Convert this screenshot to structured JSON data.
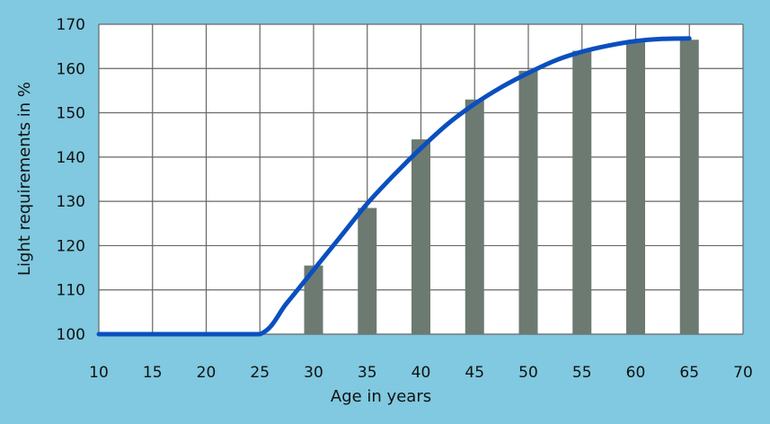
{
  "chart_data": {
    "type": "bar",
    "title": "",
    "xlabel": "Age in years",
    "ylabel": "Light requirements in %",
    "xlim": [
      10,
      70
    ],
    "ylim": [
      100,
      170
    ],
    "x_ticks": [
      10,
      15,
      20,
      25,
      30,
      35,
      40,
      45,
      50,
      55,
      60,
      65,
      70
    ],
    "y_ticks": [
      100,
      110,
      120,
      130,
      140,
      150,
      160,
      170
    ],
    "grid": true,
    "bars": {
      "x": [
        30,
        35,
        40,
        45,
        50,
        55,
        60,
        65
      ],
      "values": [
        115.5,
        128.5,
        144,
        153,
        159.5,
        164,
        166,
        166.5
      ],
      "color": "#6c7a72"
    },
    "line": {
      "x": [
        10,
        15,
        20,
        25,
        27.5,
        30,
        32.5,
        35,
        37.5,
        40,
        42.5,
        45,
        47.5,
        50,
        52.5,
        55,
        57.5,
        60,
        62.5,
        65
      ],
      "values": [
        100,
        100,
        100,
        100,
        107,
        114.5,
        122,
        129.5,
        136,
        142,
        147.5,
        152,
        155.8,
        159,
        161.8,
        163.8,
        165.2,
        166.2,
        166.7,
        166.8
      ],
      "color": "#0a4fbf"
    },
    "colors": {
      "background": "#80c9e0",
      "plot_background": "#ffffff",
      "grid": "#666666"
    }
  }
}
